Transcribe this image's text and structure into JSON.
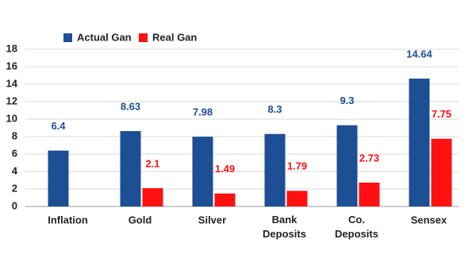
{
  "chart_data": {
    "type": "bar",
    "categories": [
      "Inflation",
      "Gold",
      "Silver",
      "Bank Deposits",
      "Co. Deposits",
      "Sensex"
    ],
    "series": [
      {
        "name": "Actual Gan",
        "color": "#1c4f93",
        "values": [
          6.4,
          8.63,
          7.98,
          8.3,
          9.3,
          14.64
        ]
      },
      {
        "name": "Real Gan",
        "color": "#ff1111",
        "values": [
          null,
          2.1,
          1.49,
          1.79,
          2.73,
          7.75
        ]
      }
    ],
    "ylim": [
      0,
      18
    ],
    "yticks": [
      0,
      2,
      4,
      6,
      8,
      10,
      12,
      14,
      16,
      18
    ],
    "grid": true,
    "legend": "top",
    "data_labels": true
  }
}
